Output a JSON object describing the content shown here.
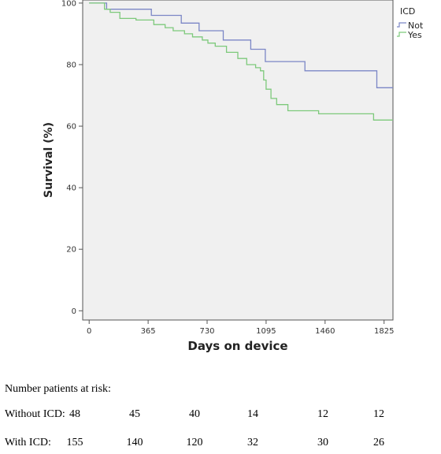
{
  "chart_data": {
    "type": "line",
    "title": "",
    "xlabel": "Days on device",
    "ylabel": "Survival (%)",
    "xlim": [
      -40,
      1880
    ],
    "ylim": [
      -3,
      101
    ],
    "xticks": [
      0,
      365,
      730,
      1095,
      1460,
      1825
    ],
    "yticks": [
      0,
      20,
      40,
      60,
      80,
      100
    ],
    "grid": false,
    "legend": {
      "title": "ICD",
      "placement": "top-right"
    },
    "series": [
      {
        "name": "Not",
        "color": "#7b86c6",
        "step": true,
        "x": [
          0,
          108,
          385,
          570,
          680,
          830,
          1000,
          1090,
          1135,
          1200,
          1335,
          1780,
          1890
        ],
        "y": [
          100,
          98,
          96,
          93.5,
          91,
          88,
          85,
          81,
          81,
          81,
          78,
          72.5,
          72.5
        ]
      },
      {
        "name": "Yes",
        "color": "#7dc97b",
        "step": true,
        "x": [
          0,
          95,
          130,
          190,
          290,
          400,
          470,
          520,
          590,
          640,
          700,
          735,
          780,
          850,
          920,
          975,
          1030,
          1060,
          1080,
          1095,
          1125,
          1160,
          1230,
          1420,
          1760,
          1890
        ],
        "y": [
          100,
          98,
          97,
          95,
          94.5,
          93,
          92,
          91,
          90,
          89,
          88,
          87,
          86,
          84,
          82,
          80,
          79,
          78,
          75,
          72,
          69,
          67,
          65,
          64,
          62,
          62
        ]
      }
    ]
  },
  "risk_table": {
    "title": "Number patients at risk:",
    "rows": [
      {
        "label": "Without ICD:",
        "values": [
          "48",
          "45",
          "40",
          "14",
          "12",
          "12"
        ]
      },
      {
        "label": "With ICD:",
        "values": [
          "155",
          "140",
          "120",
          "32",
          "30",
          "26"
        ]
      }
    ]
  }
}
